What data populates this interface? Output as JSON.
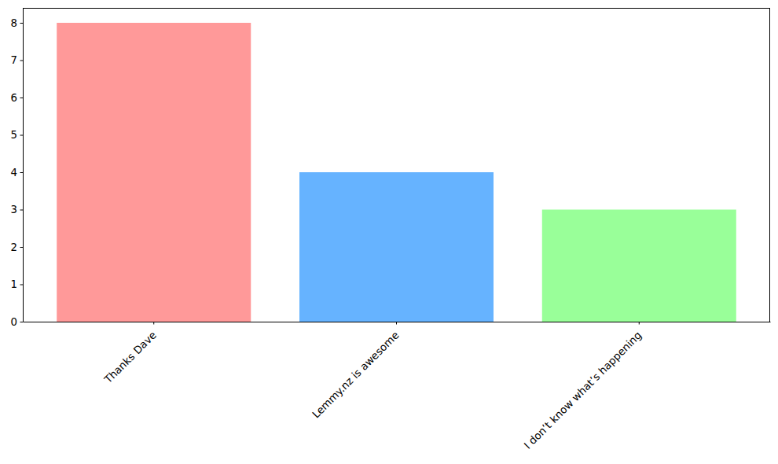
{
  "chart_data": {
    "type": "bar",
    "categories": [
      "Thanks Dave",
      "Lemmy.nz is awesome",
      "I don’t know what’s happening"
    ],
    "values": [
      8,
      4,
      3
    ],
    "colors": [
      "#ff9999",
      "#66b3ff",
      "#99ff99"
    ],
    "ylim": [
      0,
      8.4
    ],
    "yticks": [
      0,
      1,
      2,
      3,
      4,
      5,
      6,
      7,
      8
    ],
    "grid": false
  }
}
